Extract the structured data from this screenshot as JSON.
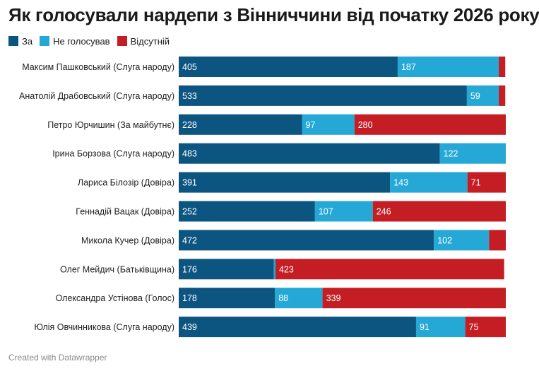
{
  "title": "Як голосували нардепи з Вінниччини від початку 2026 року",
  "footer": "Created with Datawrapper",
  "legend": [
    {
      "label": "За",
      "color": "#0d5581"
    },
    {
      "label": "Не голосував",
      "color": "#25a8d6"
    },
    {
      "label": "Відсутній",
      "color": "#c41e24"
    }
  ],
  "chart_data": {
    "type": "bar",
    "orientation": "horizontal",
    "stacked": true,
    "categories": [
      "Максим Пашковський (Слуга народу)",
      "Анатолій Драбовський (Слуга народу)",
      "Петро Юрчишин (За майбутнє)",
      "Ірина Борзова (Слуга народу)",
      "Лариса Білозір (Довіра)",
      "Геннадій Вацак (Довіра)",
      "Микола Кучер (Довіра)",
      "Олег Мейдич (Батьківщина)",
      "Олександра Устінова (Голос)",
      "Юлія Овчинникова (Слуга народу)"
    ],
    "series": [
      {
        "name": "За",
        "color": "#0d5581",
        "values": [
          405,
          533,
          228,
          483,
          391,
          252,
          472,
          176,
          178,
          439
        ]
      },
      {
        "name": "Не голосував",
        "color": "#25a8d6",
        "values": [
          187,
          59,
          97,
          122,
          143,
          107,
          102,
          3,
          88,
          91
        ]
      },
      {
        "name": "Відсутній",
        "color": "#c41e24",
        "values": [
          12,
          12,
          280,
          0,
          71,
          246,
          31,
          423,
          339,
          75
        ]
      }
    ],
    "labels_shown": [
      [
        true,
        true,
        true,
        true,
        true,
        true,
        true,
        true,
        true,
        true
      ],
      [
        true,
        true,
        true,
        true,
        true,
        true,
        true,
        false,
        true,
        true
      ],
      [
        false,
        false,
        true,
        false,
        true,
        true,
        false,
        true,
        true,
        true
      ]
    ],
    "xlim": [
      0,
      605
    ],
    "legend_position": "top-left",
    "grid": false
  }
}
